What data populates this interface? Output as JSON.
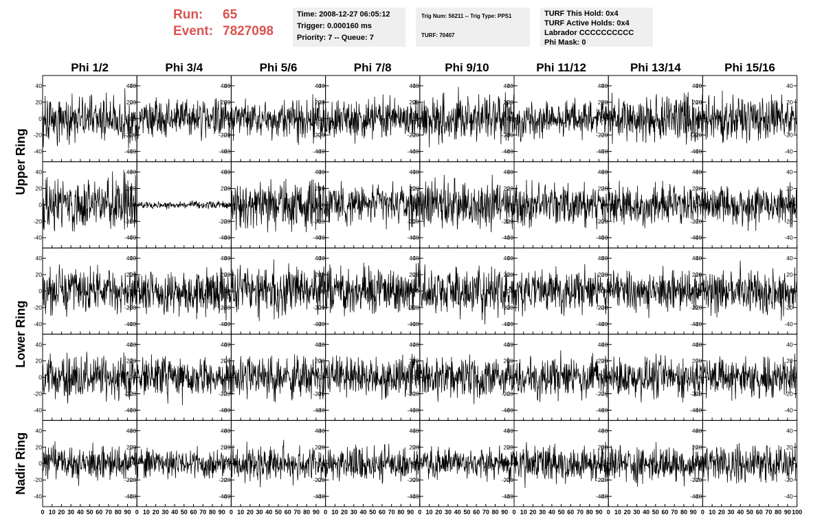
{
  "header": {
    "run_label": "Run:",
    "run_value": "65",
    "event_label": "Event:",
    "event_value": "7827098",
    "time_text": "Time: 2008-12-27 06:05:12",
    "trigger_text": "Trigger: 0.000160 ms",
    "priority_text": "Priority: 7 -- Queue: 7",
    "trig_text": "Trig Num: 56211 -- Trig Type: PPS1",
    "turf_text": "TURF: 70407",
    "hold_text": "TURF This Hold: 0x4",
    "active_holds_text": "TURF Active Holds: 0x4",
    "labrador_text": "Labrador CCCCCCCCCC",
    "phi_mask_text": "Phi Mask: 0"
  },
  "colors": {
    "accent": "#d9534f",
    "pane_background": "#efefef",
    "trace": "#000000"
  },
  "chart_data": {
    "type": "line",
    "columns": [
      "Phi 1/2",
      "Phi 3/4",
      "Phi 5/6",
      "Phi 7/8",
      "Phi 9/10",
      "Phi 11/12",
      "Phi 13/14",
      "Phi 15/16"
    ],
    "ring_labels": [
      {
        "text": "Upper Ring",
        "rows": [
          0,
          1
        ]
      },
      {
        "text": "Lower Ring",
        "rows": [
          2,
          3
        ]
      },
      {
        "text": "Nadir Ring",
        "rows": [
          4,
          4
        ]
      }
    ],
    "rows": 5,
    "xlim": [
      0,
      100
    ],
    "ylim": [
      -50,
      50
    ],
    "xticks": [
      "0",
      "10",
      "20",
      "30",
      "40",
      "50",
      "60",
      "70",
      "80",
      "90",
      "100"
    ],
    "yticks": [
      "-40",
      "-20",
      "0",
      "20",
      "40"
    ],
    "samples_per_trace": 260,
    "panels": [
      [
        {
          "amplitude": 14,
          "seed": 11
        },
        {
          "amplitude": 11,
          "seed": 12
        },
        {
          "amplitude": 12,
          "seed": 13
        },
        {
          "amplitude": 12,
          "seed": 14
        },
        {
          "amplitude": 14,
          "seed": 15
        },
        {
          "amplitude": 11,
          "seed": 16
        },
        {
          "amplitude": 14,
          "seed": 17
        },
        {
          "amplitude": 13,
          "seed": 18
        }
      ],
      [
        {
          "amplitude": 16,
          "seed": 21
        },
        {
          "amplitude": 2,
          "seed": 22
        },
        {
          "amplitude": 15,
          "seed": 23
        },
        {
          "amplitude": 12,
          "seed": 24
        },
        {
          "amplitude": 14,
          "seed": 25
        },
        {
          "amplitude": 13,
          "seed": 26
        },
        {
          "amplitude": 12,
          "seed": 27
        },
        {
          "amplitude": 12,
          "seed": 28
        }
      ],
      [
        {
          "amplitude": 13,
          "seed": 31
        },
        {
          "amplitude": 13,
          "seed": 32
        },
        {
          "amplitude": 14,
          "seed": 33
        },
        {
          "amplitude": 13,
          "seed": 34
        },
        {
          "amplitude": 14,
          "seed": 35
        },
        {
          "amplitude": 12,
          "seed": 36
        },
        {
          "amplitude": 12,
          "seed": 37
        },
        {
          "amplitude": 13,
          "seed": 38
        }
      ],
      [
        {
          "amplitude": 13,
          "seed": 41
        },
        {
          "amplitude": 12,
          "seed": 42
        },
        {
          "amplitude": 13,
          "seed": 43
        },
        {
          "amplitude": 12,
          "seed": 44
        },
        {
          "amplitude": 12,
          "seed": 45
        },
        {
          "amplitude": 12,
          "seed": 46
        },
        {
          "amplitude": 12,
          "seed": 47
        },
        {
          "amplitude": 12,
          "seed": 48
        }
      ],
      [
        {
          "amplitude": 10,
          "seed": 51
        },
        {
          "amplitude": 9,
          "seed": 52
        },
        {
          "amplitude": 11,
          "seed": 53
        },
        {
          "amplitude": 11,
          "seed": 54
        },
        {
          "amplitude": 9,
          "seed": 55
        },
        {
          "amplitude": 11,
          "seed": 56
        },
        {
          "amplitude": 11,
          "seed": 57
        },
        {
          "amplitude": 11,
          "seed": 58
        }
      ]
    ]
  }
}
